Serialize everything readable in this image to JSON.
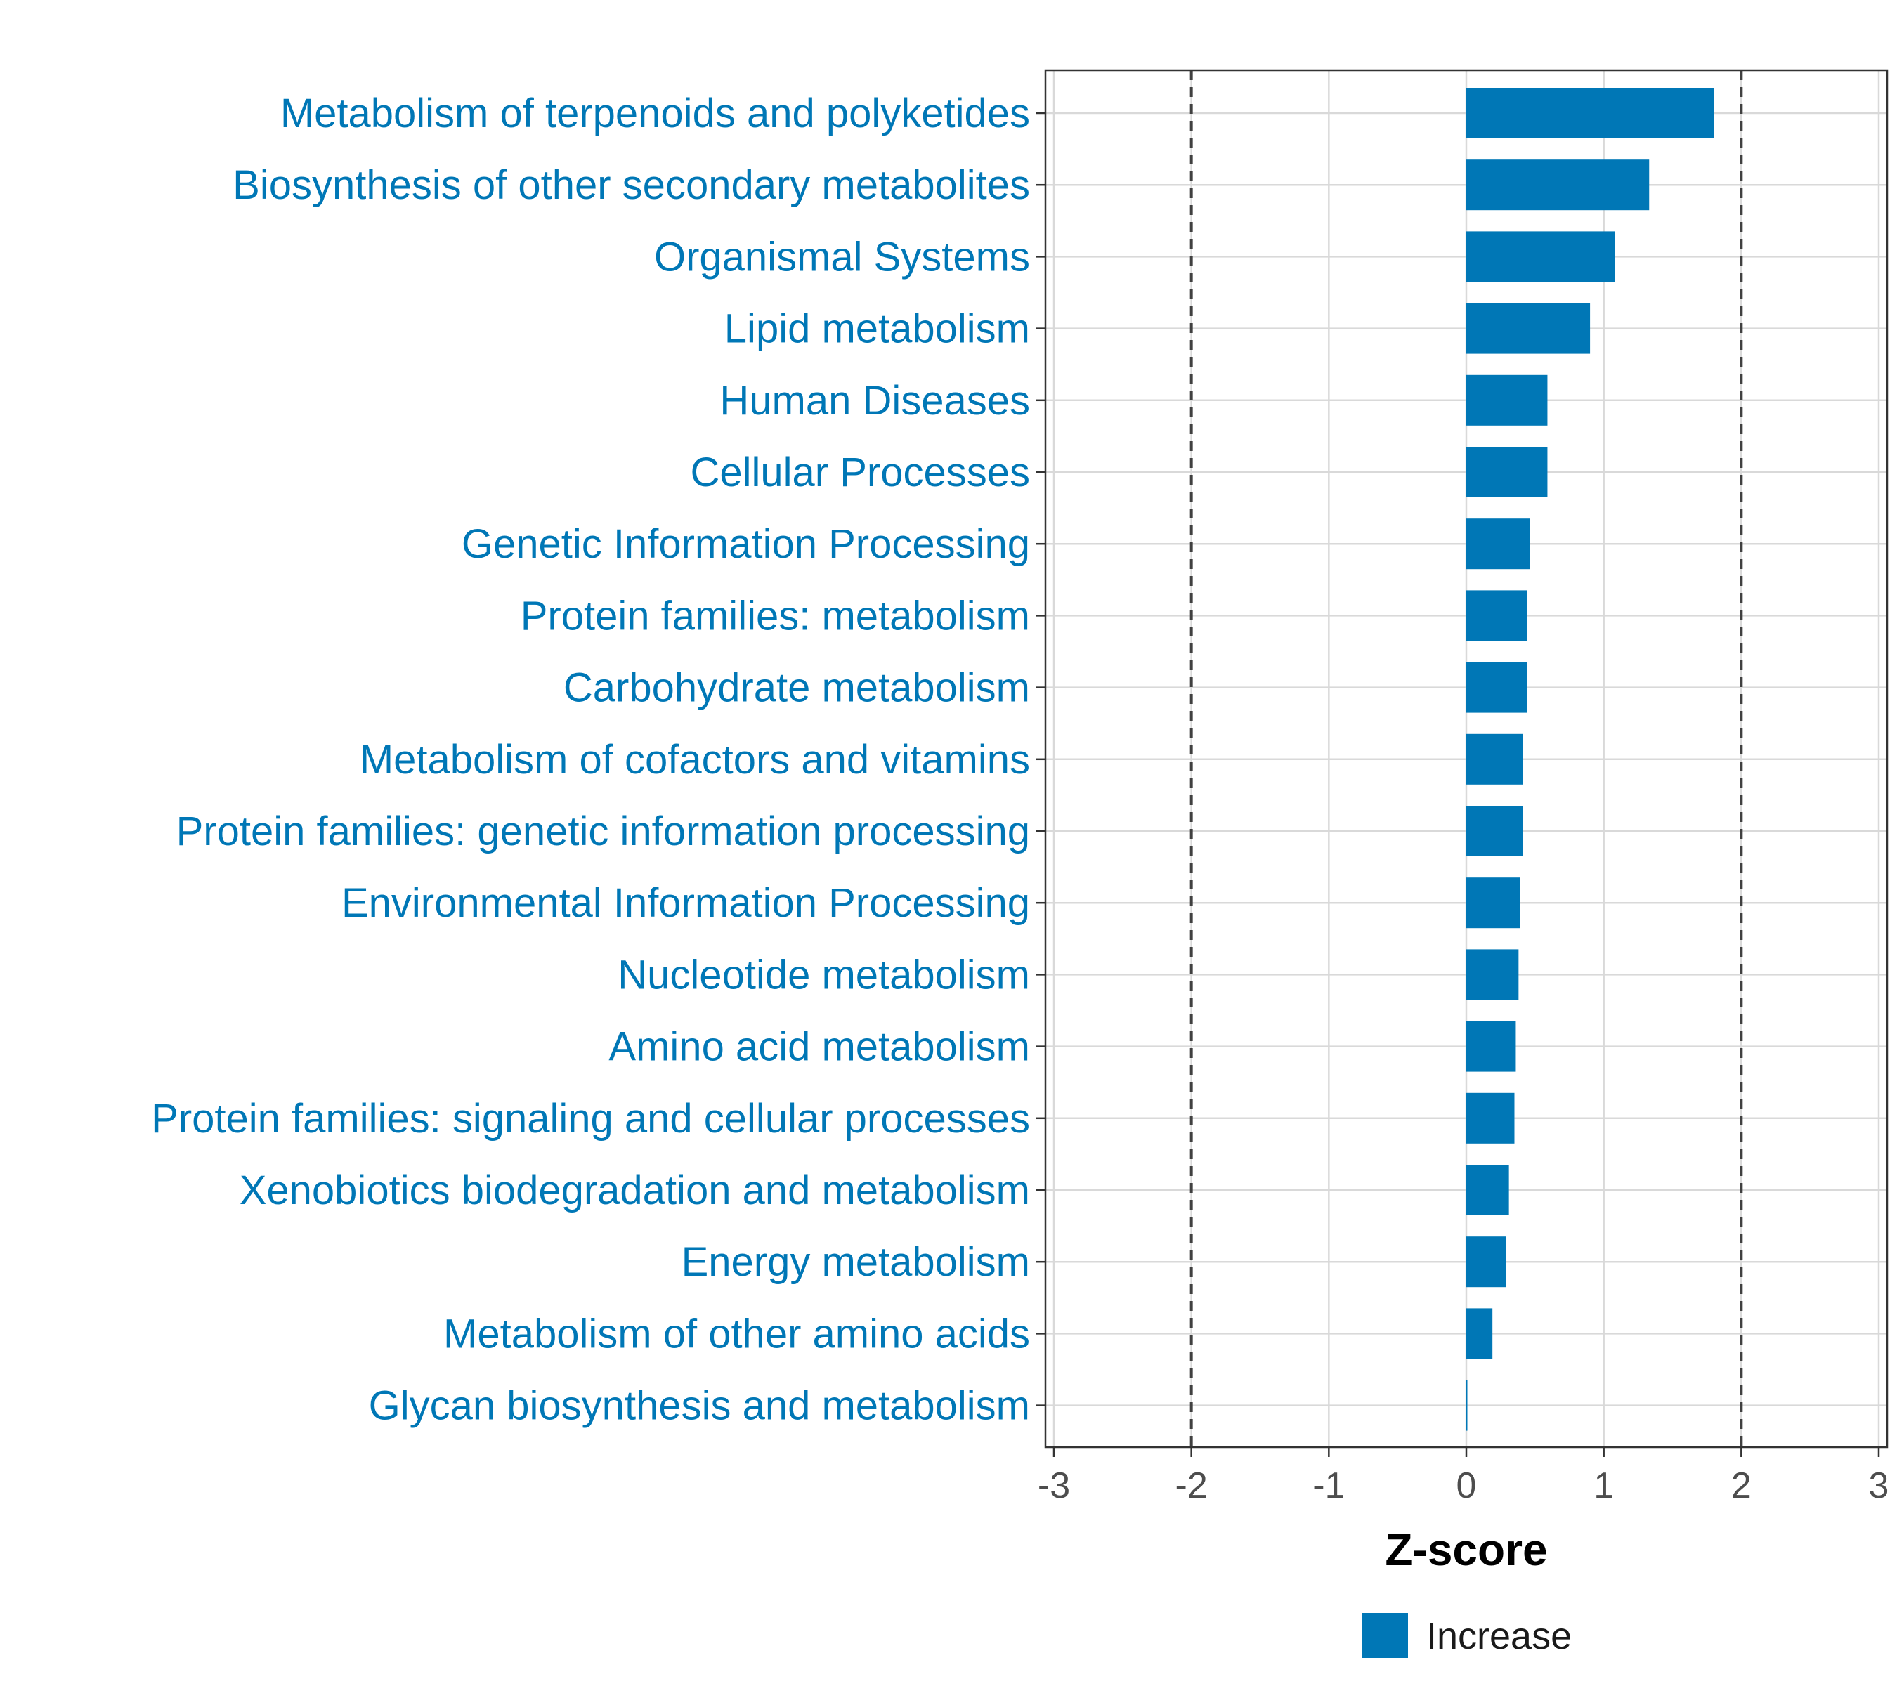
{
  "chart_data": {
    "type": "bar",
    "orientation": "horizontal",
    "title": "",
    "xlabel": "Z-score",
    "ylabel": "",
    "xlim": [
      -3,
      3
    ],
    "xticks": [
      -3,
      -2,
      -1,
      0,
      1,
      2,
      3
    ],
    "xtick_labels": [
      "-3",
      "-2",
      "-1",
      "0",
      "1",
      "2",
      "3"
    ],
    "reference_lines": [
      -2,
      2
    ],
    "grid": true,
    "categories": [
      "Metabolism of terpenoids and polyketides",
      "Biosynthesis of other secondary metabolites",
      "Organismal Systems",
      "Lipid metabolism",
      "Human Diseases",
      "Cellular Processes",
      "Genetic Information Processing",
      "Protein families: metabolism",
      "Carbohydrate metabolism",
      "Metabolism of cofactors and vitamins",
      "Protein families: genetic information processing",
      "Environmental Information Processing",
      "Nucleotide metabolism",
      "Amino acid metabolism",
      "Protein families: signaling and cellular processes",
      "Xenobiotics biodegradation and metabolism",
      "Energy metabolism",
      "Metabolism of other amino acids",
      "Glycan biosynthesis and metabolism"
    ],
    "values": [
      1.8,
      1.33,
      1.08,
      0.9,
      0.59,
      0.59,
      0.46,
      0.44,
      0.44,
      0.41,
      0.41,
      0.39,
      0.38,
      0.36,
      0.35,
      0.31,
      0.29,
      0.19,
      0.0
    ],
    "series_name": "Increase",
    "legend": {
      "position": "bottom",
      "entries": [
        {
          "label": "Increase",
          "color": "#0077b6"
        }
      ]
    },
    "colors": {
      "bar": "#0077b6",
      "category_label": "#0077b6",
      "grid": "#d9d9d9",
      "reference": "#404040",
      "border": "#333333"
    }
  }
}
